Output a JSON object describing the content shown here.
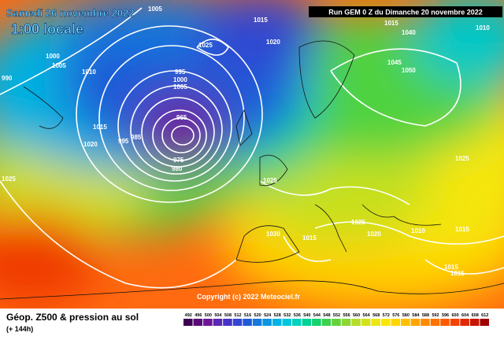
{
  "header": {
    "date": "Samedi 26 novembre 2022",
    "time": "1:00 locale",
    "run": "Run GEM 0 Z du Dimanche 20 novembre 2022"
  },
  "copyright": "Copyright (c) 2022 Meteociel.fr",
  "footer": {
    "title": "Géop. Z500 & pression au sol",
    "lead": "(+ 144h)"
  },
  "pressure_labels": [
    "1005",
    "1015",
    "1020",
    "1025",
    "1000",
    "1005",
    "990",
    "1010",
    "995",
    "1000",
    "1005",
    "965",
    "985",
    "995",
    "975",
    "980",
    "1015",
    "1020",
    "1025",
    "1025",
    "1030",
    "1015",
    "1025",
    "1020",
    "1010",
    "1015",
    "1045",
    "1050",
    "1015",
    "1040",
    "1025",
    "1015",
    "1015",
    "1010"
  ],
  "legend": [
    {
      "value": 492,
      "color": "#3c0050"
    },
    {
      "value": 496,
      "color": "#5a0a78"
    },
    {
      "value": 500,
      "color": "#6e1496"
    },
    {
      "value": 504,
      "color": "#5a28b4"
    },
    {
      "value": 508,
      "color": "#4632c8"
    },
    {
      "value": 512,
      "color": "#3246d2"
    },
    {
      "value": 516,
      "color": "#1e5ad7"
    },
    {
      "value": 520,
      "color": "#1478dc"
    },
    {
      "value": 524,
      "color": "#0a96e1"
    },
    {
      "value": 528,
      "color": "#00b4e6"
    },
    {
      "value": 532,
      "color": "#00c8dc"
    },
    {
      "value": 536,
      "color": "#00d2be"
    },
    {
      "value": 540,
      "color": "#00d296"
    },
    {
      "value": 544,
      "color": "#14d26e"
    },
    {
      "value": 548,
      "color": "#3cd250"
    },
    {
      "value": 552,
      "color": "#64d23c"
    },
    {
      "value": 556,
      "color": "#8cd732"
    },
    {
      "value": 560,
      "color": "#b4dc28"
    },
    {
      "value": 564,
      "color": "#d2e11e"
    },
    {
      "value": 568,
      "color": "#ebe614"
    },
    {
      "value": 572,
      "color": "#fae60a"
    },
    {
      "value": 576,
      "color": "#ffd700"
    },
    {
      "value": 580,
      "color": "#ffbe00"
    },
    {
      "value": 584,
      "color": "#ffa500"
    },
    {
      "value": 588,
      "color": "#ff8c00"
    },
    {
      "value": 592,
      "color": "#ff7300"
    },
    {
      "value": 596,
      "color": "#ff5a00"
    },
    {
      "value": 600,
      "color": "#f54100"
    },
    {
      "value": 604,
      "color": "#e12800"
    },
    {
      "value": 608,
      "color": "#c81400"
    },
    {
      "value": 612,
      "color": "#a00000"
    }
  ]
}
